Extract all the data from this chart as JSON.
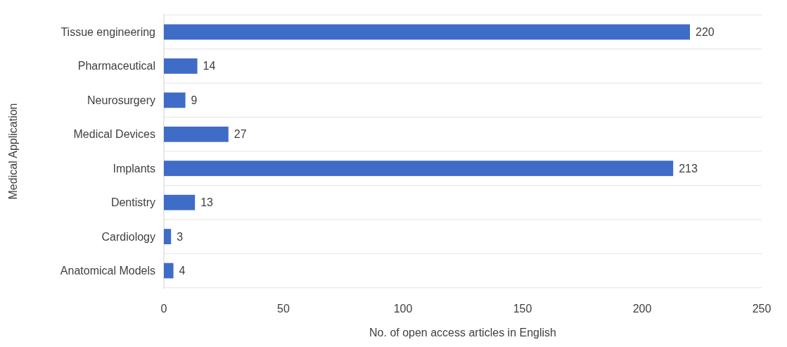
{
  "chart_data": {
    "type": "bar",
    "orientation": "horizontal",
    "categories": [
      "Tissue engineering",
      "Pharmaceutical",
      "Neurosurgery",
      "Medical Devices",
      "Implants",
      "Dentistry",
      "Cardiology",
      "Anatomical Models"
    ],
    "values": [
      220,
      14,
      9,
      27,
      213,
      13,
      3,
      4
    ],
    "color": "#3f6cc6",
    "xlim": [
      0,
      250
    ],
    "xticks": [
      0,
      50,
      100,
      150,
      200,
      250
    ],
    "grid": "y",
    "data_labels": true,
    "xlabel": "No. of open access articles in English",
    "ylabel": "Medical Application"
  }
}
